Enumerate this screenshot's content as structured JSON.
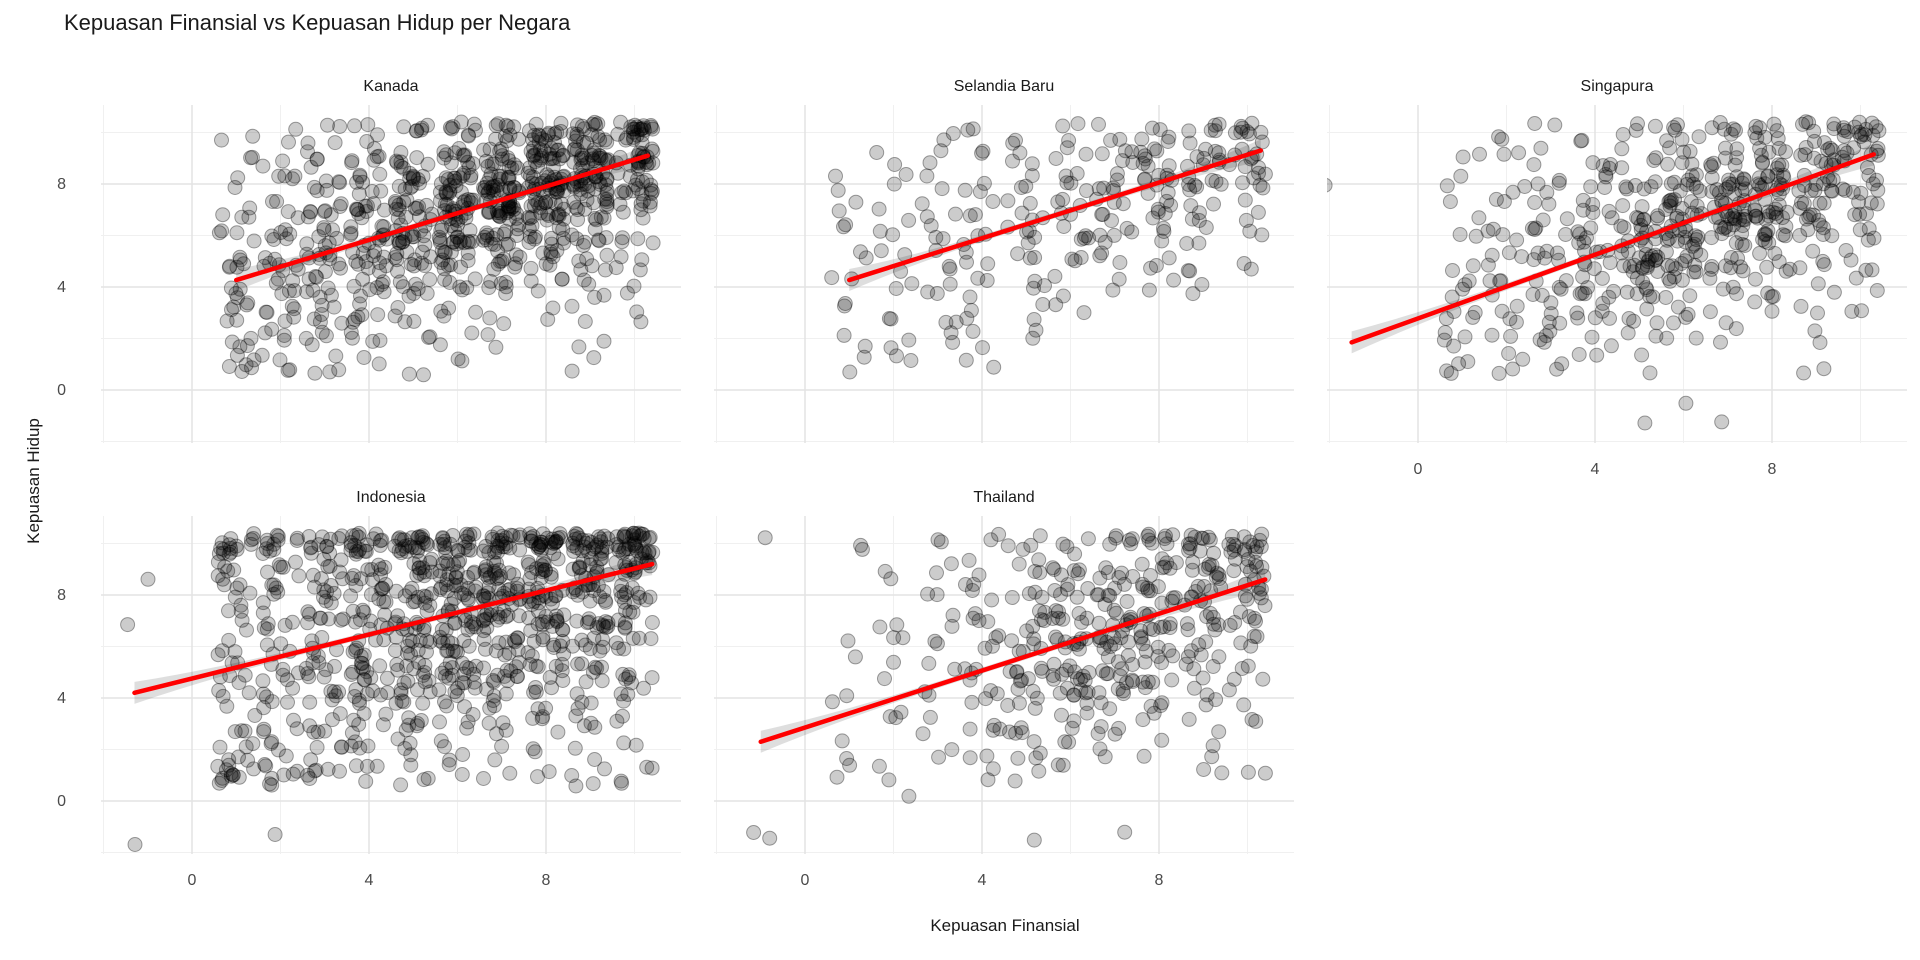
{
  "title": "Kepuasan Finansial vs Kepuasan Hidup per Negara",
  "axes": {
    "x_title": "Kepuasan Finansial",
    "y_title": "Kepuasan Hidup",
    "x_ticks": [
      0,
      4,
      8
    ],
    "y_ticks": [
      0,
      4,
      8
    ],
    "minor_gridlines": [
      -2,
      2,
      6,
      10
    ],
    "x_domain": [
      -2.06,
      11.05
    ],
    "y_domain": [
      -2.06,
      11.07
    ]
  },
  "style": {
    "background": "#ffffff",
    "title_color": "#1a1a1a",
    "axis_text_color": "#4a4a4a",
    "strip_text_color": "#1a1a1a",
    "grid_major_color": "#e4e4e4",
    "grid_minor_color": "#f0f0f0",
    "point_color": "#000000",
    "point_fill_opacity": 0.2,
    "point_stroke_opacity": 0.36,
    "line_color": "#ff0000",
    "band_color": "#000000",
    "band_opacity": 0.13
  },
  "chart_data": {
    "type": "scatter",
    "facet_by": "Negara",
    "grid": "on",
    "legend": "none",
    "jitter": 0.42,
    "seed": 20240521,
    "x_levels": [
      1,
      2,
      3,
      4,
      5,
      6,
      7,
      8,
      9,
      10
    ],
    "y_levels": [
      10,
      9,
      8,
      7,
      6,
      5,
      4,
      3,
      2,
      1
    ],
    "facets": [
      {
        "label": "Kanada",
        "row": 0,
        "col": 0,
        "show_x_axis": false,
        "show_y_axis": true,
        "count_scale": 2,
        "regression": {
          "x1": 1.0,
          "y1": 4.27,
          "x2": 10.3,
          "y2": 9.1
        },
        "counts": [
          [
            1,
            1,
            2,
            2,
            3,
            4,
            5,
            8,
            9,
            12
          ],
          [
            1,
            1,
            2,
            3,
            4,
            6,
            8,
            12,
            12,
            10
          ],
          [
            1,
            2,
            3,
            4,
            6,
            10,
            14,
            16,
            14,
            8
          ],
          [
            2,
            2,
            4,
            5,
            8,
            12,
            14,
            12,
            8,
            4
          ],
          [
            2,
            3,
            4,
            6,
            8,
            10,
            8,
            6,
            4,
            2
          ],
          [
            3,
            4,
            5,
            6,
            6,
            6,
            5,
            4,
            3,
            2
          ],
          [
            2,
            3,
            4,
            4,
            4,
            3,
            3,
            2,
            2,
            1
          ],
          [
            3,
            3,
            3,
            3,
            2,
            2,
            1,
            1,
            1,
            1
          ],
          [
            2,
            2,
            2,
            2,
            1,
            1,
            1,
            0,
            1,
            0
          ],
          [
            3,
            2,
            2,
            1,
            1,
            1,
            0,
            0,
            1,
            0
          ]
        ],
        "outliers": []
      },
      {
        "label": "Selandia Baru",
        "row": 0,
        "col": 1,
        "show_x_axis": false,
        "show_y_axis": false,
        "count_scale": 1.5,
        "regression": {
          "x1": 1.0,
          "y1": 4.27,
          "x2": 10.3,
          "y2": 9.3
        },
        "counts": [
          [
            0,
            0,
            1,
            1,
            1,
            2,
            2,
            3,
            4,
            6
          ],
          [
            0,
            1,
            1,
            1,
            2,
            2,
            3,
            5,
            6,
            5
          ],
          [
            1,
            1,
            1,
            2,
            2,
            3,
            4,
            6,
            5,
            4
          ],
          [
            1,
            1,
            2,
            2,
            3,
            3,
            4,
            4,
            3,
            2
          ],
          [
            1,
            1,
            2,
            2,
            3,
            3,
            3,
            2,
            2,
            1
          ],
          [
            1,
            2,
            2,
            2,
            2,
            2,
            2,
            2,
            1,
            1
          ],
          [
            1,
            1,
            2,
            2,
            2,
            1,
            1,
            1,
            1,
            0
          ],
          [
            1,
            1,
            1,
            1,
            1,
            1,
            0,
            0,
            0,
            0
          ],
          [
            1,
            1,
            1,
            1,
            1,
            0,
            0,
            0,
            0,
            0
          ],
          [
            1,
            1,
            0,
            1,
            0,
            0,
            0,
            0,
            0,
            0
          ]
        ],
        "outliers": []
      },
      {
        "label": "Singapura",
        "row": 0,
        "col": 2,
        "show_x_axis": true,
        "show_y_axis": false,
        "count_scale": 2,
        "regression": {
          "x1": -1.5,
          "y1": 1.85,
          "x2": 10.3,
          "y2": 9.15
        },
        "counts": [
          [
            0,
            1,
            1,
            1,
            2,
            3,
            3,
            4,
            4,
            8
          ],
          [
            1,
            1,
            1,
            2,
            2,
            3,
            4,
            5,
            6,
            5
          ],
          [
            1,
            1,
            2,
            2,
            3,
            5,
            8,
            8,
            6,
            4
          ],
          [
            1,
            1,
            2,
            3,
            4,
            8,
            10,
            8,
            5,
            3
          ],
          [
            1,
            2,
            2,
            3,
            6,
            8,
            6,
            5,
            3,
            2
          ],
          [
            1,
            2,
            3,
            4,
            10,
            6,
            4,
            3,
            2,
            2
          ],
          [
            2,
            2,
            3,
            4,
            4,
            3,
            2,
            2,
            1,
            1
          ],
          [
            2,
            2,
            2,
            3,
            2,
            2,
            1,
            1,
            1,
            1
          ],
          [
            2,
            1,
            2,
            1,
            1,
            1,
            1,
            0,
            1,
            0
          ],
          [
            2,
            2,
            1,
            1,
            1,
            0,
            0,
            0,
            1,
            0
          ]
        ],
        "outliers": [
          [
            -2,
            8
          ],
          [
            5.2,
            -1.4
          ],
          [
            6.9,
            -1.2
          ],
          [
            6.2,
            -0.5
          ]
        ]
      },
      {
        "label": "Indonesia",
        "row": 1,
        "col": 0,
        "show_x_axis": true,
        "show_y_axis": true,
        "count_scale": 2,
        "regression": {
          "x1": -1.3,
          "y1": 4.2,
          "x2": 10.4,
          "y2": 9.2
        },
        "counts": [
          [
            8,
            6,
            6,
            10,
            12,
            10,
            12,
            14,
            14,
            18
          ],
          [
            3,
            3,
            4,
            5,
            6,
            8,
            8,
            8,
            8,
            8
          ],
          [
            3,
            3,
            4,
            5,
            6,
            8,
            10,
            8,
            8,
            6
          ],
          [
            2,
            3,
            4,
            5,
            6,
            8,
            8,
            8,
            6,
            4
          ],
          [
            2,
            2,
            3,
            4,
            6,
            6,
            6,
            5,
            4,
            3
          ],
          [
            3,
            3,
            4,
            6,
            6,
            8,
            6,
            4,
            4,
            3
          ],
          [
            2,
            3,
            3,
            4,
            4,
            4,
            3,
            3,
            2,
            2
          ],
          [
            2,
            2,
            3,
            3,
            3,
            2,
            2,
            2,
            2,
            1
          ],
          [
            3,
            2,
            2,
            2,
            2,
            2,
            1,
            1,
            1,
            1
          ],
          [
            6,
            4,
            3,
            2,
            2,
            1,
            1,
            1,
            2,
            2
          ]
        ],
        "outliers": [
          [
            -1,
            8.7
          ],
          [
            -1.6,
            6.8
          ],
          [
            -1.4,
            -1.6
          ],
          [
            2,
            -1.2
          ]
        ]
      },
      {
        "label": "Thailand",
        "row": 1,
        "col": 1,
        "show_x_axis": true,
        "show_y_axis": false,
        "count_scale": 2,
        "regression": {
          "x1": -1.0,
          "y1": 2.3,
          "x2": 10.4,
          "y2": 8.6
        },
        "counts": [
          [
            1,
            0,
            1,
            1,
            2,
            2,
            3,
            4,
            6,
            8
          ],
          [
            0,
            1,
            1,
            1,
            2,
            3,
            3,
            4,
            5,
            5
          ],
          [
            0,
            0,
            1,
            2,
            2,
            3,
            4,
            5,
            5,
            4
          ],
          [
            0,
            1,
            1,
            2,
            3,
            4,
            5,
            5,
            4,
            3
          ],
          [
            1,
            1,
            1,
            2,
            3,
            5,
            6,
            4,
            3,
            2
          ],
          [
            0,
            1,
            1,
            2,
            4,
            6,
            5,
            3,
            2,
            2
          ],
          [
            1,
            0,
            1,
            2,
            3,
            4,
            3,
            2,
            2,
            1
          ],
          [
            0,
            1,
            1,
            2,
            2,
            2,
            2,
            1,
            1,
            1
          ],
          [
            1,
            0,
            1,
            1,
            2,
            1,
            1,
            1,
            1,
            0
          ],
          [
            1,
            1,
            0,
            1,
            1,
            1,
            0,
            0,
            1,
            1
          ]
        ],
        "outliers": [
          [
            -0.8,
            10.2
          ],
          [
            -1.1,
            -1.2
          ],
          [
            -0.9,
            -1.4
          ],
          [
            5.2,
            -1.5
          ],
          [
            7.1,
            -1.3
          ],
          [
            2.2,
            3.5
          ],
          [
            2.3,
            0.3
          ]
        ]
      }
    ]
  }
}
